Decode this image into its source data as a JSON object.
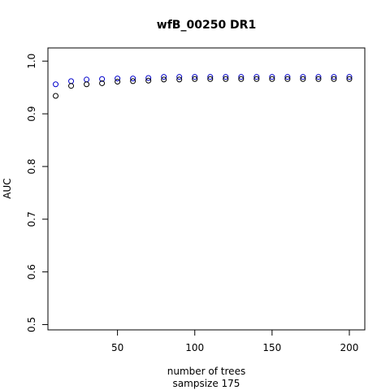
{
  "chart_data": {
    "type": "scatter",
    "title": "wfB_00250 DR1",
    "xlabel": "number of trees",
    "xlabel2": "sampsize 175",
    "ylabel": "AUC",
    "xlim": [
      5,
      210
    ],
    "ylim": [
      0.49,
      1.025
    ],
    "xticks": [
      50,
      100,
      150,
      200
    ],
    "yticks": [
      0.5,
      0.6,
      0.7,
      0.8,
      0.9,
      1.0
    ],
    "ytick_labels": [
      "0.5",
      "0.6",
      "0.7",
      "0.8",
      "0.9",
      "1.0"
    ],
    "grid": false,
    "series": [
      {
        "color": "#0000cc",
        "x": [
          10,
          20,
          30,
          40,
          50,
          60,
          70,
          80,
          90,
          100,
          110,
          120,
          130,
          140,
          150,
          160,
          170,
          180,
          190,
          200
        ],
        "y": [
          0.956,
          0.962,
          0.965,
          0.966,
          0.967,
          0.967,
          0.968,
          0.97,
          0.97,
          0.97,
          0.97,
          0.97,
          0.97,
          0.97,
          0.97,
          0.97,
          0.97,
          0.97,
          0.97,
          0.97
        ]
      },
      {
        "color": "#000000",
        "x": [
          10,
          20,
          30,
          40,
          50,
          60,
          70,
          80,
          90,
          100,
          110,
          120,
          130,
          140,
          150,
          160,
          170,
          180,
          190,
          200
        ],
        "y": [
          0.934,
          0.953,
          0.956,
          0.958,
          0.961,
          0.962,
          0.963,
          0.965,
          0.965,
          0.966,
          0.966,
          0.966,
          0.966,
          0.966,
          0.966,
          0.966,
          0.966,
          0.966,
          0.966,
          0.966
        ]
      }
    ]
  }
}
